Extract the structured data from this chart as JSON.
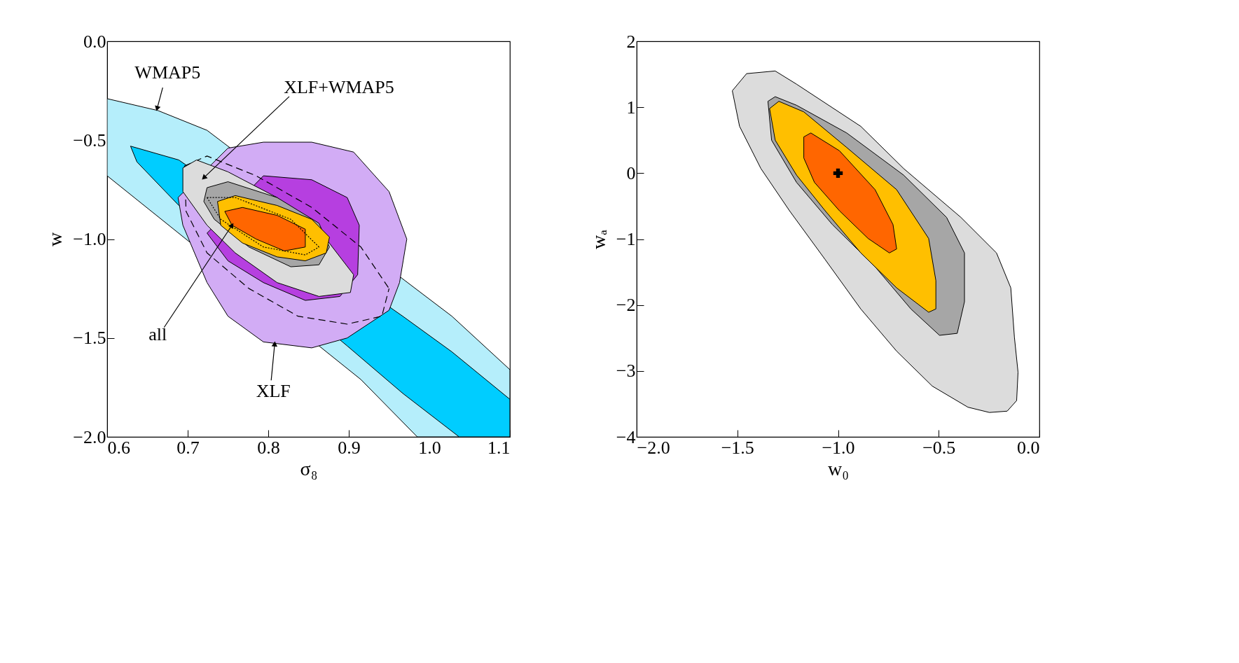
{
  "chart_data": [
    {
      "type": "area",
      "xlabel": "σ₈",
      "ylabel": "w",
      "xlim": [
        0.6,
        1.1
      ],
      "ylim": [
        -2.0,
        0.0
      ],
      "xticks": [
        {
          "value": 0.6,
          "label": "0.6"
        },
        {
          "value": 0.7,
          "label": "0.7"
        },
        {
          "value": 0.8,
          "label": "0.8"
        },
        {
          "value": 0.9,
          "label": "0.9"
        },
        {
          "value": 1.0,
          "label": "1.0"
        },
        {
          "value": 1.1,
          "label": "1.1"
        }
      ],
      "yticks": [
        {
          "value": -2.0,
          "label": "−2.0"
        },
        {
          "value": -1.5,
          "label": "−1.5"
        },
        {
          "value": -1.0,
          "label": "−1.0"
        },
        {
          "value": -0.5,
          "label": "−0.5"
        },
        {
          "value": 0.0,
          "label": "0.0"
        }
      ],
      "series": [
        {
          "color": "#b5eefb",
          "x": [
            0.6,
            0.663,
            0.724,
            1.028,
            1.1,
            1.1,
            0.985,
            0.915,
            0.6
          ],
          "values": [
            -0.29,
            -0.35,
            -0.45,
            -1.39,
            -1.66,
            -2.0,
            -2.0,
            -1.71,
            -0.68
          ]
        },
        {
          "color": "#00cdff",
          "x": [
            0.629,
            0.689,
            0.967,
            1.028,
            1.1,
            1.1,
            1.037,
            0.967,
            0.898,
            0.689,
            0.637
          ],
          "values": [
            -0.53,
            -0.6,
            -1.39,
            -1.57,
            -1.81,
            -2.0,
            -2.0,
            -1.78,
            -1.54,
            -0.83,
            -0.61
          ]
        },
        {
          "color": "#d2acf5",
          "x": [
            0.75,
            0.794,
            0.854,
            0.906,
            0.95,
            0.972,
            0.963,
            0.95,
            0.898,
            0.854,
            0.794,
            0.75,
            0.724,
            0.694,
            0.688
          ],
          "values": [
            -0.54,
            -0.51,
            -0.51,
            -0.56,
            -0.76,
            -1.0,
            -1.22,
            -1.36,
            -1.5,
            -1.55,
            -1.52,
            -1.39,
            -1.22,
            -0.93,
            -0.79
          ]
        },
        {
          "color": "#b63fe0",
          "x": [
            0.794,
            0.854,
            0.898,
            0.913,
            0.911,
            0.889,
            0.846,
            0.794,
            0.75,
            0.724
          ],
          "values": [
            -0.68,
            -0.7,
            -0.79,
            -0.93,
            -1.18,
            -1.29,
            -1.31,
            -1.22,
            -1.11,
            -0.97
          ]
        },
        {
          "type": "line",
          "line_style": "dashed",
          "color": "#000000",
          "x": [
            0.696,
            0.724,
            0.785,
            0.854,
            0.915,
            0.95
          ],
          "values": [
            -0.63,
            -0.58,
            -0.68,
            -0.84,
            -1.04,
            -1.25
          ]
        },
        {
          "type": "line",
          "line_style": "dashed",
          "color": "#000000",
          "x": [
            0.696,
            0.698,
            0.724,
            0.776,
            0.837,
            0.898,
            0.941,
            0.95
          ],
          "values": [
            -0.63,
            -0.86,
            -1.07,
            -1.25,
            -1.39,
            -1.43,
            -1.39,
            -1.25
          ]
        },
        {
          "color": "#dcdcdc",
          "x": [
            0.694,
            0.711,
            0.75,
            0.811,
            0.872,
            0.906,
            0.902,
            0.863,
            0.811,
            0.759,
            0.724,
            0.694
          ],
          "values": [
            -0.64,
            -0.6,
            -0.66,
            -0.79,
            -1.0,
            -1.18,
            -1.27,
            -1.29,
            -1.22,
            -1.07,
            -0.93,
            -0.76
          ]
        },
        {
          "color": "#a6a6a6",
          "x": [
            0.724,
            0.75,
            0.811,
            0.863,
            0.876,
            0.863,
            0.828,
            0.776,
            0.733,
            0.72
          ],
          "values": [
            -0.74,
            -0.71,
            -0.79,
            -0.92,
            -1.04,
            -1.13,
            -1.14,
            -1.04,
            -0.9,
            -0.81
          ]
        },
        {
          "color": "#ffbf00",
          "x": [
            0.737,
            0.759,
            0.811,
            0.854,
            0.876,
            0.872,
            0.846,
            0.811,
            0.768,
            0.741
          ],
          "values": [
            -0.81,
            -0.78,
            -0.83,
            -0.9,
            -0.99,
            -1.07,
            -1.11,
            -1.09,
            -1.02,
            -0.93
          ]
        },
        {
          "color": "#ff6600",
          "x": [
            0.746,
            0.768,
            0.811,
            0.846,
            0.846,
            0.82,
            0.785,
            0.755
          ],
          "values": [
            -0.86,
            -0.84,
            -0.88,
            -0.95,
            -1.04,
            -1.06,
            -1.0,
            -0.93
          ]
        },
        {
          "type": "line",
          "line_style": "dotted",
          "color": "#000000",
          "x": [
            0.724,
            0.759,
            0.828,
            0.863
          ],
          "values": [
            -0.79,
            -0.79,
            -0.9,
            -1.04
          ]
        },
        {
          "type": "line",
          "line_style": "dotted",
          "color": "#000000",
          "x": [
            0.724,
            0.741,
            0.794,
            0.846,
            0.863
          ],
          "values": [
            -0.79,
            -0.9,
            -1.04,
            -1.08,
            -1.04
          ]
        }
      ],
      "annotations": [
        {
          "text": "WMAP5",
          "x": 0.662,
          "y": -0.34
        },
        {
          "text": "XLF+WMAP5",
          "x": 0.72,
          "y": -0.69
        },
        {
          "text": "all",
          "x": 0.755,
          "y": -0.93
        },
        {
          "text": "XLF",
          "x": 0.808,
          "y": -1.53
        }
      ]
    },
    {
      "type": "area",
      "xlabel": "w₀",
      "ylabel": "wₐ",
      "xlim": [
        -2.0,
        0.0
      ],
      "ylim": [
        -4,
        2
      ],
      "xticks": [
        {
          "value": -2.0,
          "label": "−2.0"
        },
        {
          "value": -1.5,
          "label": "−1.5"
        },
        {
          "value": -1.0,
          "label": "−1.0"
        },
        {
          "value": -0.5,
          "label": "−0.5"
        },
        {
          "value": 0.0,
          "label": "0.0"
        }
      ],
      "yticks": [
        {
          "value": -4,
          "label": "−4"
        },
        {
          "value": -3,
          "label": "−3"
        },
        {
          "value": -2,
          "label": "−2"
        },
        {
          "value": -1,
          "label": "−1"
        },
        0,
        1,
        2
      ],
      "series": [
        {
          "color": "#dcdcdc",
          "x": [
            -1.525,
            -1.454,
            -1.312,
            -1.206,
            -0.887,
            -0.674,
            -0.39,
            -0.213,
            -0.142,
            -0.124,
            -0.106,
            -0.113,
            -0.16,
            -0.248,
            -0.355,
            -0.532,
            -0.709,
            -0.887,
            -1.064,
            -1.241,
            -1.383,
            -1.489
          ],
          "values": [
            1.25,
            1.51,
            1.55,
            1.35,
            0.71,
            0.07,
            -0.67,
            -1.21,
            -1.74,
            -2.49,
            -3.02,
            -3.45,
            -3.61,
            -3.63,
            -3.55,
            -3.23,
            -2.7,
            -2.06,
            -1.31,
            -0.57,
            0.07,
            0.71
          ]
        },
        {
          "color": "#a6a6a6",
          "x": [
            -1.348,
            -1.312,
            -1.206,
            -0.957,
            -0.674,
            -0.461,
            -0.372,
            -0.372,
            -0.408,
            -0.496,
            -0.638,
            -0.816,
            -1.028,
            -1.206,
            -1.33
          ],
          "values": [
            1.09,
            1.16,
            1.03,
            0.61,
            -0.03,
            -0.67,
            -1.21,
            -1.95,
            -2.43,
            -2.46,
            -2.06,
            -1.42,
            -0.78,
            -0.14,
            0.5
          ]
        },
        {
          "color": "#ffbf00",
          "x": [
            -1.34,
            -1.294,
            -1.17,
            -0.957,
            -0.709,
            -0.55,
            -0.514,
            -0.514,
            -0.55,
            -0.709,
            -0.887,
            -1.064,
            -1.206,
            -1.312
          ],
          "values": [
            0.98,
            1.09,
            0.93,
            0.39,
            -0.25,
            -0.99,
            -1.63,
            -2.06,
            -2.11,
            -1.74,
            -1.21,
            -0.57,
            -0.03,
            0.5
          ]
        },
        {
          "color": "#ff6600",
          "x": [
            -1.17,
            -1.135,
            -0.993,
            -0.816,
            -0.727,
            -0.709,
            -0.745,
            -0.851,
            -0.993,
            -1.117,
            -1.17
          ],
          "values": [
            0.55,
            0.61,
            0.34,
            -0.25,
            -0.78,
            -1.15,
            -1.21,
            -0.99,
            -0.57,
            -0.14,
            0.23
          ]
        },
        {
          "type": "scatter",
          "marker": "cross",
          "color": "#000000",
          "x": [
            -1.0
          ],
          "values": [
            0
          ]
        }
      ]
    }
  ]
}
